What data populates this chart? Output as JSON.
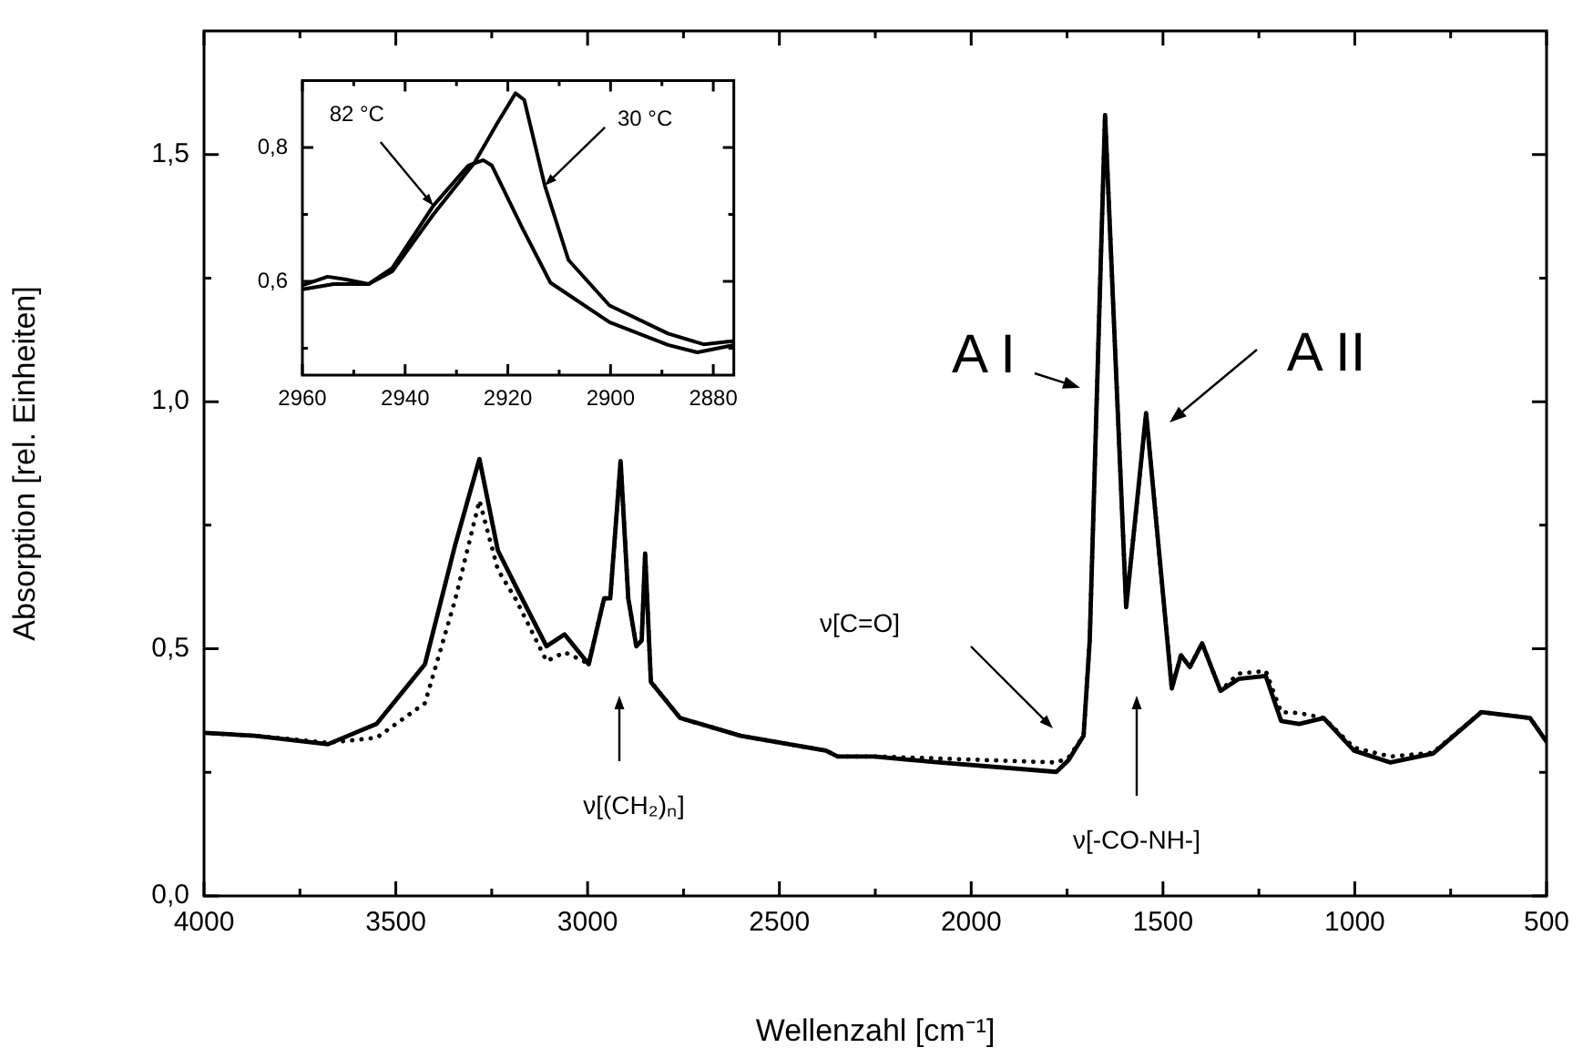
{
  "chart_data": [
    {
      "type": "line",
      "xlabel": "Wellenzahl [cm⁻¹]",
      "ylabel": "Absorption [rel. Einheiten]",
      "xlim": [
        4000,
        500
      ],
      "ylim": [
        0,
        1.75
      ],
      "xticks": [
        4000,
        {
          "value": 3750,
          "label": null
        },
        3500,
        {
          "value": 3250,
          "label": null
        },
        3000,
        {
          "value": 2750,
          "label": null
        },
        2500,
        {
          "value": 2250,
          "label": null
        },
        2000,
        {
          "value": 1750,
          "label": null
        },
        1500,
        {
          "value": 1250,
          "label": null
        },
        1000,
        {
          "value": 750,
          "label": null
        },
        500
      ],
      "yticks": [
        {
          "value": 0,
          "label": "0,0"
        },
        {
          "value": 0.25,
          "label": null
        },
        {
          "value": 0.5,
          "label": "0,5"
        },
        {
          "value": 0.75,
          "label": null
        },
        {
          "value": 1.0,
          "label": "1,0"
        },
        {
          "value": 1.25,
          "label": null
        },
        {
          "value": 1.5,
          "label": "1,5"
        }
      ],
      "x": [
        4000,
        3867,
        3677,
        3550,
        3424,
        3345,
        3282,
        3234,
        3187,
        3107,
        3060,
        2997,
        2957,
        2941,
        2914,
        2894,
        2873,
        2859,
        2850,
        2835,
        2759,
        2601,
        2379,
        2348,
        2253,
        2158,
        1778,
        1746,
        1707,
        1691,
        1651,
        1596,
        1544,
        1477,
        1453,
        1430,
        1398,
        1350,
        1303,
        1232,
        1192,
        1145,
        1081,
        1002,
        907,
        796,
        670,
        543,
        500
      ],
      "series": [
        {
          "color": "#000000",
          "line_style": "solid",
          "values": [
            0.33,
            0.324,
            0.307,
            0.348,
            0.469,
            0.711,
            0.884,
            0.699,
            0.626,
            0.505,
            0.529,
            0.469,
            0.602,
            0.602,
            0.88,
            0.602,
            0.505,
            0.517,
            0.693,
            0.433,
            0.36,
            0.324,
            0.294,
            0.282,
            0.282,
            0.275,
            0.251,
            0.275,
            0.324,
            0.517,
            1.58,
            0.584,
            0.977,
            0.42,
            0.487,
            0.463,
            0.511,
            0.415,
            0.439,
            0.445,
            0.354,
            0.348,
            0.36,
            0.294,
            0.27,
            0.288,
            0.372,
            0.36,
            0.312
          ]
        },
        {
          "color": "#000000",
          "line_style": "dotted",
          "values": [
            0.33,
            0.324,
            0.31,
            0.32,
            0.39,
            0.6,
            0.8,
            0.66,
            0.6,
            0.475,
            0.493,
            0.47,
            0.602,
            0.602,
            0.88,
            0.602,
            0.505,
            0.517,
            0.693,
            0.433,
            0.36,
            0.324,
            0.294,
            0.282,
            0.282,
            0.28,
            0.27,
            0.28,
            0.324,
            0.517,
            1.58,
            0.584,
            0.977,
            0.42,
            0.487,
            0.463,
            0.511,
            0.415,
            0.45,
            0.455,
            0.372,
            0.37,
            0.36,
            0.3,
            0.282,
            0.29,
            0.372,
            0.36,
            0.312
          ]
        }
      ],
      "annotations": [
        "A I",
        "A II",
        "ν[C=O]",
        "ν[(CH₂)ₙ]",
        "ν[-CO-NH-]"
      ]
    },
    {
      "type": "line",
      "legend": "top",
      "xlim": [
        2960,
        2876
      ],
      "ylim": [
        0.46,
        0.9
      ],
      "xticks": [
        2960,
        {
          "value": 2950,
          "label": null
        },
        2940,
        {
          "value": 2930,
          "label": null
        },
        2920,
        {
          "value": 2910,
          "label": null
        },
        2900,
        {
          "value": 2890,
          "label": null
        },
        2880
      ],
      "yticks": [
        {
          "value": 0.5,
          "label": null
        },
        {
          "value": 0.6,
          "label": "0,6"
        },
        {
          "value": 0.7,
          "label": null
        },
        {
          "value": 0.8,
          "label": "0,8"
        }
      ],
      "series": [
        {
          "name": "30 °C",
          "color": "#000000",
          "x": [
            2960,
            2955.1,
            2951.7,
            2947.1,
            2942.5,
            2934.5,
            2926.5,
            2922,
            2918.5,
            2916.8,
            2912.8,
            2908.2,
            2900.2,
            2888.8,
            2881.9,
            2876
          ],
          "values": [
            0.594,
            0.607,
            0.603,
            0.596,
            0.615,
            0.7,
            0.777,
            0.837,
            0.881,
            0.871,
            0.743,
            0.632,
            0.564,
            0.522,
            0.506,
            0.511
          ]
        },
        {
          "name": "82 °C",
          "color": "#000000",
          "x": [
            2960,
            2953.9,
            2947.1,
            2942.5,
            2934.5,
            2927.7,
            2924.8,
            2923.1,
            2917.4,
            2911.7,
            2900.2,
            2888.8,
            2883.1,
            2876
          ],
          "values": [
            0.588,
            0.596,
            0.596,
            0.62,
            0.713,
            0.773,
            0.781,
            0.773,
            0.683,
            0.598,
            0.539,
            0.505,
            0.494,
            0.505
          ]
        }
      ]
    }
  ]
}
